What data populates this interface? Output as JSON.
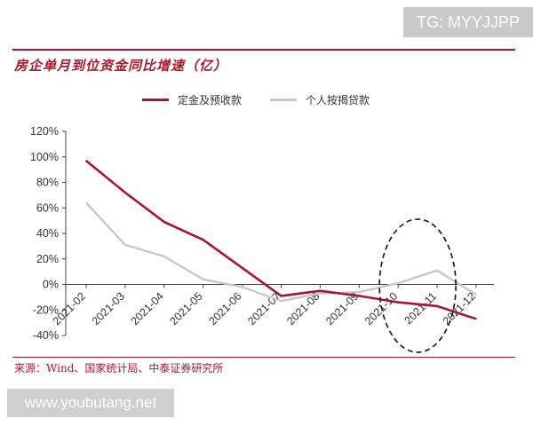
{
  "watermark_top": "TG: MYYJJPP",
  "watermark_bottom": "www.youbutang.net",
  "source_note": "来源：Wind、国家统计局、中泰证券研究所",
  "colors": {
    "series1": "#a5143a",
    "series2": "#c8c8c8",
    "accent": "#b0162b"
  },
  "chart_data": {
    "type": "line",
    "title": "房企单月到位资金同比增速（亿）",
    "xlabel": "",
    "ylabel": "",
    "categories": [
      "2021-02",
      "2021-03",
      "2021-04",
      "2021-05",
      "2021-06",
      "2021-07",
      "2021-08",
      "2021-09",
      "2021-10",
      "2021-11",
      "2021-12"
    ],
    "y_ticks": [
      "120%",
      "100%",
      "80%",
      "60%",
      "40%",
      "20%",
      "0%",
      "-20%",
      "-40%"
    ],
    "y_tick_values": [
      120,
      100,
      80,
      60,
      40,
      20,
      0,
      -20,
      -40
    ],
    "ylim": [
      -40,
      120
    ],
    "grid": false,
    "legend_position": "top",
    "series": [
      {
        "name": "定金及预收款",
        "values": [
          97,
          72,
          49,
          35,
          13,
          -9,
          -5,
          -9,
          -14,
          -17,
          -27
        ]
      },
      {
        "name": "个人按揭贷款",
        "values": [
          64,
          31,
          22,
          4,
          -2,
          -13,
          -7,
          -6,
          1,
          11,
          -8
        ]
      }
    ],
    "annotation": "dashed ellipse around 2021-10 to 2021-11"
  }
}
